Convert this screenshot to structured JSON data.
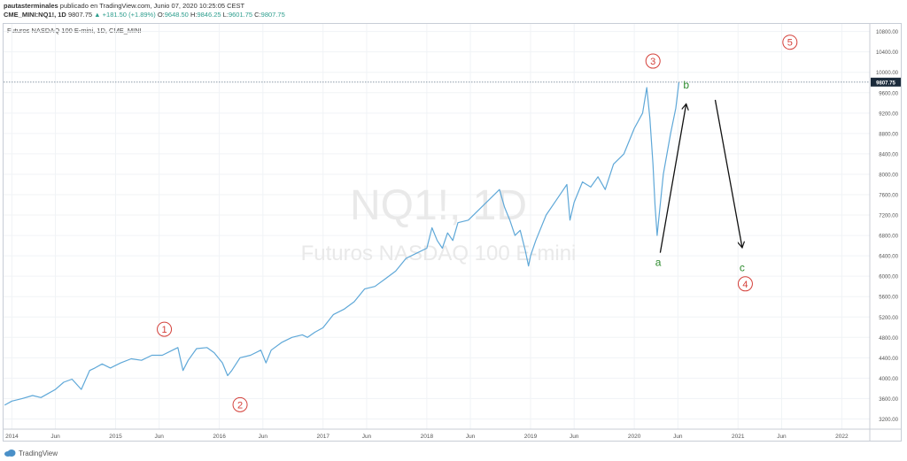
{
  "header": {
    "author": "pautasterminales",
    "published": " publicado en TradingView.com, Junio 07, 2020 10:25:05 CEST",
    "symbol": "CME_MINI:NQ1!, 1D",
    "last": "9807.75",
    "change": "▲ +181.50 (+1.89%)",
    "o_label": "O:",
    "o": "9648.50",
    "h_label": "H:",
    "h": "9846.25",
    "l_label": "L:",
    "l": "9601.75",
    "c_label": "C:",
    "c": "9807.75"
  },
  "footer": {
    "brand": "TradingView"
  },
  "colors": {
    "series": "#5fa8d8",
    "wave_red": "#d4403a",
    "wave_green": "#2e8b2e",
    "price_tag": "#1a2a3a"
  },
  "chart_data": {
    "type": "line",
    "title": "Futuros NASDAQ 100 E-mini, 1D, CME_MINI",
    "watermark_symbol": "NQ1!, 1D",
    "watermark_name": "Futuros NASDAQ 100 E-mini",
    "x_tick_labels": [
      "2014",
      "Jun",
      "2015",
      "Jun",
      "2016",
      "Jun",
      "2017",
      "Jun",
      "2018",
      "Jun",
      "2019",
      "Jun",
      "2020",
      "Jun",
      "2021",
      "Jun",
      "2022"
    ],
    "x_tick_values": [
      2014.0,
      2014.42,
      2015.0,
      2015.42,
      2016.0,
      2016.42,
      2017.0,
      2017.42,
      2018.0,
      2018.42,
      2019.0,
      2019.42,
      2020.0,
      2020.42,
      2021.0,
      2021.42,
      2022.0
    ],
    "xlim": [
      2013.92,
      2022.27
    ],
    "y_tick_values": [
      3200,
      3600,
      4000,
      4400,
      4800,
      5200,
      5600,
      6000,
      6400,
      6800,
      7200,
      7600,
      8000,
      8400,
      8800,
      9200,
      9600,
      10000,
      10400,
      10800
    ],
    "y_tick_labels": [
      "3200.00",
      "3600.00",
      "4000.00",
      "4400.00",
      "4800.00",
      "5200.00",
      "5600.00",
      "6000.00",
      "6400.00",
      "6800.00",
      "7200.00",
      "7600.00",
      "8000.00",
      "8400.00",
      "8800.00",
      "9200.00",
      "9600.00",
      "10000.00",
      "10400.00",
      "10800.00"
    ],
    "ylim": [
      3000,
      10950
    ],
    "last_price": 9807.75,
    "last_price_label": "9807.75",
    "series": [
      {
        "x": [
          2013.93,
          2014.0,
          2014.1,
          2014.2,
          2014.28,
          2014.35,
          2014.42,
          2014.5,
          2014.58,
          2014.67,
          2014.75,
          2014.8,
          2014.87,
          2014.95,
          2015.05,
          2015.15,
          2015.25,
          2015.35,
          2015.45,
          2015.55,
          2015.6,
          2015.65,
          2015.7,
          2015.78,
          2015.88,
          2015.95,
          2016.03,
          2016.08,
          2016.12,
          2016.2,
          2016.3,
          2016.4,
          2016.45,
          2016.5,
          2016.6,
          2016.7,
          2016.8,
          2016.85,
          2016.92,
          2017.0,
          2017.1,
          2017.2,
          2017.3,
          2017.4,
          2017.5,
          2017.6,
          2017.7,
          2017.8,
          2017.9,
          2018.0,
          2018.05,
          2018.1,
          2018.15,
          2018.2,
          2018.25,
          2018.3,
          2018.4,
          2018.5,
          2018.6,
          2018.7,
          2018.75,
          2018.8,
          2018.85,
          2018.9,
          2018.95,
          2018.98,
          2019.0,
          2019.05,
          2019.15,
          2019.25,
          2019.35,
          2019.38,
          2019.42,
          2019.5,
          2019.58,
          2019.65,
          2019.72,
          2019.8,
          2019.9,
          2020.0,
          2020.08,
          2020.12,
          2020.15,
          2020.18,
          2020.2,
          2020.22,
          2020.24,
          2020.28,
          2020.35,
          2020.4,
          2020.43
        ],
        "y": [
          3470,
          3550,
          3600,
          3660,
          3620,
          3700,
          3780,
          3920,
          3980,
          3780,
          4150,
          4200,
          4280,
          4200,
          4300,
          4380,
          4350,
          4450,
          4450,
          4550,
          4600,
          4150,
          4350,
          4580,
          4600,
          4500,
          4300,
          4050,
          4150,
          4400,
          4450,
          4550,
          4300,
          4550,
          4700,
          4800,
          4850,
          4800,
          4900,
          4990,
          5250,
          5350,
          5500,
          5750,
          5800,
          5950,
          6100,
          6350,
          6450,
          6550,
          6950,
          6700,
          6550,
          6850,
          6700,
          7050,
          7100,
          7300,
          7500,
          7700,
          7350,
          7100,
          6800,
          6900,
          6500,
          6200,
          6400,
          6700,
          7200,
          7500,
          7800,
          7100,
          7450,
          7850,
          7750,
          7950,
          7700,
          8200,
          8400,
          8900,
          9200,
          9700,
          9100,
          8200,
          7400,
          6800,
          7200,
          8000,
          8800,
          9300,
          9808
        ]
      }
    ],
    "annotations": {
      "waves": [
        {
          "label": "1",
          "color": "red",
          "x": 2015.47,
          "y": 4960
        },
        {
          "label": "2",
          "color": "red",
          "x": 2016.2,
          "y": 3480
        },
        {
          "label": "3",
          "color": "red",
          "x": 2020.18,
          "y": 10220
        },
        {
          "label": "4",
          "color": "red",
          "x": 2021.07,
          "y": 5850
        },
        {
          "label": "5",
          "color": "red",
          "x": 2021.5,
          "y": 10590
        },
        {
          "label": "a",
          "color": "green",
          "x": 2020.23,
          "y": 6270
        },
        {
          "label": "b",
          "color": "green",
          "x": 2020.5,
          "y": 9750
        },
        {
          "label": "c",
          "color": "green",
          "x": 2021.04,
          "y": 6170
        }
      ],
      "arrows": [
        {
          "from": [
            2020.25,
            6460
          ],
          "to": [
            2020.5,
            9380
          ]
        },
        {
          "from": [
            2020.78,
            9460
          ],
          "to": [
            2021.04,
            6560
          ]
        }
      ]
    }
  }
}
